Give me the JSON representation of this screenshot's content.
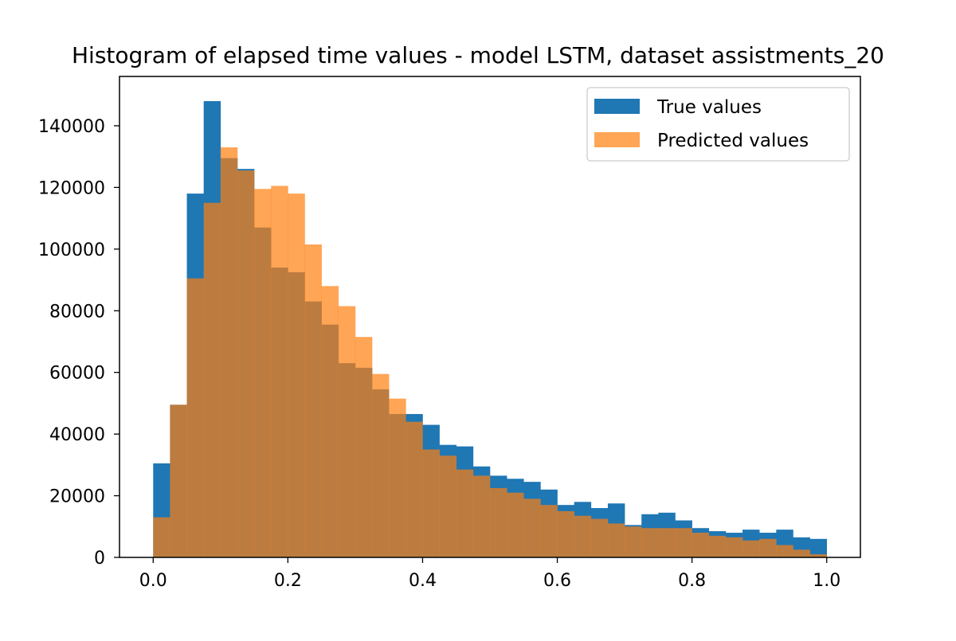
{
  "chart_data": {
    "type": "bar",
    "title": "Histogram of elapsed time values - model LSTM, dataset assistments_20",
    "xlabel": "",
    "ylabel": "",
    "xlim": [
      -0.05,
      1.05
    ],
    "ylim": [
      0,
      156000
    ],
    "bin_start": 0.0,
    "bin_width": 0.025,
    "x_ticks": [
      0.0,
      0.2,
      0.4,
      0.6,
      0.8,
      1.0
    ],
    "x_tick_labels": [
      "0.0",
      "0.2",
      "0.4",
      "0.6",
      "0.8",
      "1.0"
    ],
    "y_ticks": [
      0,
      20000,
      40000,
      60000,
      80000,
      100000,
      120000,
      140000
    ],
    "y_tick_labels": [
      "0",
      "20000",
      "40000",
      "60000",
      "80000",
      "100000",
      "120000",
      "140000"
    ],
    "grid": false,
    "legend": {
      "position": "top-right"
    },
    "series": [
      {
        "name": "True values",
        "color": "#1f77b4",
        "opacity": 1.0,
        "values": [
          30500,
          49500,
          118000,
          148000,
          129500,
          126000,
          107000,
          94000,
          92500,
          83000,
          75500,
          63000,
          61500,
          54500,
          46500,
          46500,
          43000,
          36500,
          36000,
          29500,
          26500,
          25500,
          24500,
          22000,
          17000,
          18000,
          16000,
          17500,
          10500,
          14000,
          14500,
          12000,
          9500,
          8500,
          8000,
          9000,
          8000,
          9000,
          6500,
          6000
        ]
      },
      {
        "name": "Predicted values",
        "color": "#ff7f0e",
        "opacity": 0.7,
        "values": [
          13000,
          49500,
          90500,
          115000,
          133000,
          125500,
          119500,
          120500,
          118000,
          101500,
          88000,
          81500,
          71500,
          59500,
          51500,
          44000,
          35000,
          33000,
          28500,
          26500,
          22500,
          21000,
          19000,
          17000,
          15000,
          13500,
          12500,
          11000,
          10000,
          9500,
          9500,
          9500,
          8000,
          7000,
          6500,
          5500,
          6000,
          4000,
          2500,
          1000
        ]
      }
    ]
  }
}
